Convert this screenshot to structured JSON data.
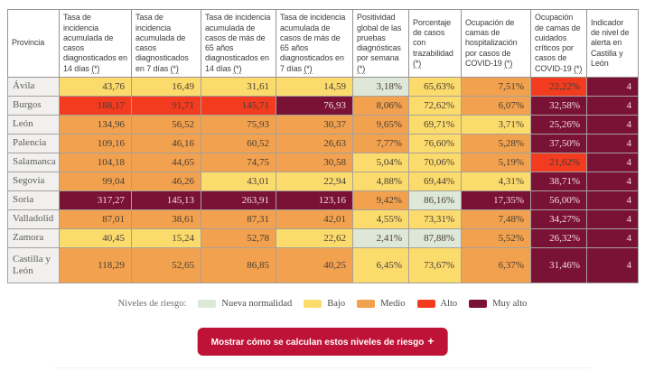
{
  "table": {
    "columns": [
      "Provincia",
      "Tasa de incidencia acumulada de casos diagnosticados en 14 días (*)",
      "Tasa de incidencia acumulada de casos diagnosticados en 7 días (*)",
      "Tasa de incidencia acumulada de casos de más de 65 años diagnosticados en 14 días (*)",
      "Tasa de incidencia acumulada de casos de más de 65 años diagnosticados en 7 días (*)",
      "Positividad global de las pruebas diagnósticas por semana (*)",
      "Porcentaje de casos con trazabilidad (*)",
      "Ocupación de camas de hospitalización por casos de COVID-19 (*)",
      "Ocupación de camas de cuidados críticos por casos de COVID-19 (*)",
      "Indicador de nivel de alerta en Castilla y León"
    ],
    "rows": [
      {
        "province": "Ávila",
        "cells": [
          [
            "43,76",
            "bajo"
          ],
          [
            "16,49",
            "bajo"
          ],
          [
            "31,61",
            "bajo"
          ],
          [
            "14,59",
            "bajo"
          ],
          [
            "3,18%",
            "nueva"
          ],
          [
            "65,63%",
            "bajo"
          ],
          [
            "7,51%",
            "medio"
          ],
          [
            "22,22%",
            "alto"
          ],
          [
            "4",
            "muyalto"
          ]
        ]
      },
      {
        "province": "Burgos",
        "cells": [
          [
            "188,17",
            "alto"
          ],
          [
            "91,71",
            "alto"
          ],
          [
            "145,71",
            "alto"
          ],
          [
            "76,93",
            "muyalto"
          ],
          [
            "8,06%",
            "medio"
          ],
          [
            "72,62%",
            "bajo"
          ],
          [
            "6,07%",
            "medio"
          ],
          [
            "32,58%",
            "muyalto"
          ],
          [
            "4",
            "muyalto"
          ]
        ]
      },
      {
        "province": "León",
        "cells": [
          [
            "134,96",
            "medio"
          ],
          [
            "56,52",
            "medio"
          ],
          [
            "75,93",
            "medio"
          ],
          [
            "30,37",
            "medio"
          ],
          [
            "9,65%",
            "medio"
          ],
          [
            "69,71%",
            "bajo"
          ],
          [
            "3,71%",
            "bajo"
          ],
          [
            "25,26%",
            "muyalto"
          ],
          [
            "4",
            "muyalto"
          ]
        ]
      },
      {
        "province": "Palencia",
        "cells": [
          [
            "109,16",
            "medio"
          ],
          [
            "46,16",
            "medio"
          ],
          [
            "60,52",
            "medio"
          ],
          [
            "26,63",
            "medio"
          ],
          [
            "7,77%",
            "medio"
          ],
          [
            "76,60%",
            "bajo"
          ],
          [
            "5,28%",
            "medio"
          ],
          [
            "37,50%",
            "muyalto"
          ],
          [
            "4",
            "muyalto"
          ]
        ]
      },
      {
        "province": "Salamanca",
        "cells": [
          [
            "104,18",
            "medio"
          ],
          [
            "44,65",
            "medio"
          ],
          [
            "74,75",
            "medio"
          ],
          [
            "30,58",
            "medio"
          ],
          [
            "5,04%",
            "bajo"
          ],
          [
            "70,06%",
            "bajo"
          ],
          [
            "5,19%",
            "medio"
          ],
          [
            "21,62%",
            "alto"
          ],
          [
            "4",
            "muyalto"
          ]
        ]
      },
      {
        "province": "Segovia",
        "cells": [
          [
            "99,04",
            "medio"
          ],
          [
            "46,26",
            "medio"
          ],
          [
            "43,01",
            "bajo"
          ],
          [
            "22,94",
            "bajo"
          ],
          [
            "4,88%",
            "bajo"
          ],
          [
            "69,44%",
            "bajo"
          ],
          [
            "4,31%",
            "bajo"
          ],
          [
            "38,71%",
            "muyalto"
          ],
          [
            "4",
            "muyalto"
          ]
        ]
      },
      {
        "province": "Soria",
        "cells": [
          [
            "317,27",
            "muyalto"
          ],
          [
            "145,13",
            "muyalto"
          ],
          [
            "263,91",
            "muyalto"
          ],
          [
            "123,16",
            "muyalto"
          ],
          [
            "9,42%",
            "medio"
          ],
          [
            "86,16%",
            "nueva"
          ],
          [
            "17,35%",
            "muyalto"
          ],
          [
            "56,00%",
            "muyalto"
          ],
          [
            "4",
            "muyalto"
          ]
        ]
      },
      {
        "province": "Valladolid",
        "cells": [
          [
            "87,01",
            "medio"
          ],
          [
            "38,61",
            "medio"
          ],
          [
            "87,31",
            "medio"
          ],
          [
            "42,01",
            "medio"
          ],
          [
            "4,55%",
            "bajo"
          ],
          [
            "73,31%",
            "bajo"
          ],
          [
            "7,48%",
            "medio"
          ],
          [
            "34,27%",
            "muyalto"
          ],
          [
            "4",
            "muyalto"
          ]
        ]
      },
      {
        "province": "Zamora",
        "cells": [
          [
            "40,45",
            "bajo"
          ],
          [
            "15,24",
            "bajo"
          ],
          [
            "52,78",
            "medio"
          ],
          [
            "22,62",
            "bajo"
          ],
          [
            "2,41%",
            "nueva"
          ],
          [
            "87,88%",
            "nueva"
          ],
          [
            "5,52%",
            "medio"
          ],
          [
            "26,32%",
            "muyalto"
          ],
          [
            "4",
            "muyalto"
          ]
        ]
      },
      {
        "province": "Castilla y León",
        "cells": [
          [
            "118,29",
            "medio"
          ],
          [
            "52,65",
            "medio"
          ],
          [
            "86,85",
            "medio"
          ],
          [
            "40,25",
            "medio"
          ],
          [
            "6,45%",
            "bajo"
          ],
          [
            "73,67%",
            "bajo"
          ],
          [
            "6,37%",
            "medio"
          ],
          [
            "31,46%",
            "muyalto"
          ],
          [
            "4",
            "muyalto"
          ]
        ]
      }
    ]
  },
  "legend": {
    "title": "Niveles de riesgo:",
    "items": [
      {
        "label": "Nueva normalidad",
        "level": "nueva"
      },
      {
        "label": "Bajo",
        "level": "bajo"
      },
      {
        "label": "Medio",
        "level": "medio"
      },
      {
        "label": "Alto",
        "level": "alto"
      },
      {
        "label": "Muy alto",
        "level": "muyalto"
      }
    ]
  },
  "button": {
    "label": "Mostrar cómo se calculan estos niveles de riesgo",
    "suffix": "+"
  },
  "colors": {
    "nueva": "#dee8d8",
    "bajo": "#fcdb6d",
    "medio": "#f2a14e",
    "alto": "#f23b1f",
    "muyalto": "#7a1235",
    "muyalto_text": "#f3dade",
    "province_bg": "#f1f0ee",
    "button_bg": "#bf1237"
  }
}
